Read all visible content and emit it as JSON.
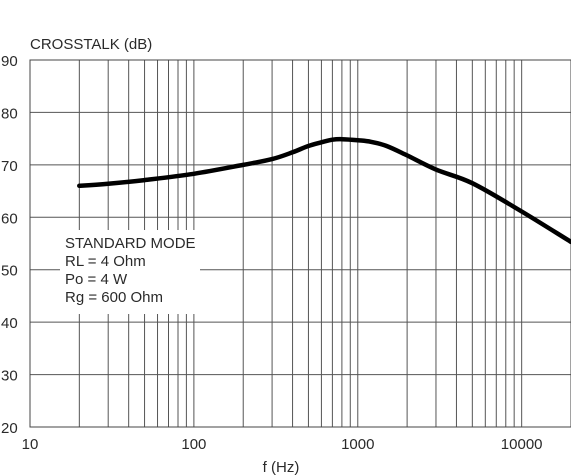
{
  "chart_data": {
    "type": "line",
    "ylabel": "CROSSTALK (dB)",
    "xlabel": "f (Hz)",
    "xscale": "log",
    "xlim": [
      10,
      20000
    ],
    "ylim": [
      20,
      90
    ],
    "grid": true,
    "x_ticks": [
      10,
      100,
      1000,
      10000
    ],
    "x_tick_labels": [
      "10",
      "100",
      "1000",
      "10000"
    ],
    "y_ticks": [
      20,
      30,
      40,
      50,
      60,
      70,
      80,
      90
    ],
    "y_tick_labels": [
      "20",
      "30",
      "40",
      "50",
      "60",
      "70",
      "80",
      "90"
    ],
    "annotation": [
      "STANDARD MODE",
      "RL = 4 Ohm",
      "Po = 4 W",
      "Rg = 600 Ohm"
    ],
    "series": [
      {
        "x": [
          20,
          30,
          50,
          100,
          200,
          300,
          400,
          500,
          600,
          700,
          800,
          1000,
          1200,
          1500,
          2000,
          3000,
          5000,
          10000,
          20000
        ],
        "y": [
          66,
          66.4,
          67.1,
          68.3,
          70,
          71.1,
          72.4,
          73.6,
          74.3,
          74.8,
          74.9,
          74.7,
          74.4,
          73.6,
          71.8,
          69.1,
          66.5,
          61.1,
          55.3
        ]
      }
    ],
    "line_color": "#000000"
  }
}
